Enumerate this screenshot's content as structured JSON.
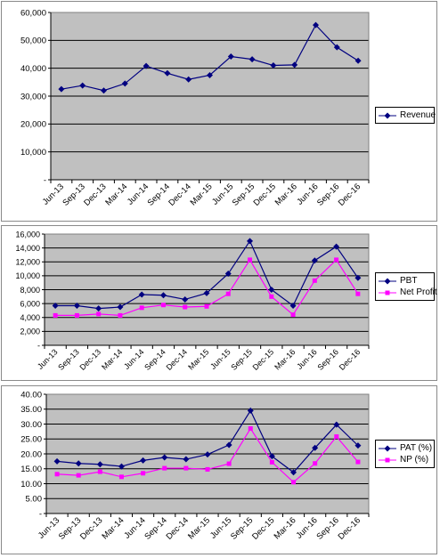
{
  "chart_data": [
    {
      "id": "revenue",
      "type": "line",
      "categories": [
        "Jun-13",
        "Sep-13",
        "Dec-13",
        "Mar-14",
        "Jun-14",
        "Sep-14",
        "Dec-14",
        "Mar-15",
        "Jun-15",
        "Sep-15",
        "Dec-15",
        "Mar-16",
        "Jun-16",
        "Sep-16",
        "Dec-16"
      ],
      "series": [
        {
          "name": "Revenue",
          "color": "#000080",
          "marker": "diamond",
          "values": [
            32500,
            33800,
            32000,
            34500,
            40800,
            38200,
            36000,
            37500,
            44200,
            43200,
            41000,
            41200,
            55500,
            47500,
            42700
          ]
        }
      ],
      "ylim": [
        0,
        60000
      ],
      "yticks": [
        0,
        10000,
        20000,
        30000,
        40000,
        50000,
        60000
      ],
      "ytick_labels": [
        "-",
        "10,000",
        "20,000",
        "30,000",
        "40,000",
        "50,000",
        "60,000"
      ],
      "grid": true,
      "plot_background": "#c0c0c0",
      "legend": "right"
    },
    {
      "id": "pbt",
      "type": "line",
      "categories": [
        "Jun-13",
        "Sep-13",
        "Dec-13",
        "Mar-14",
        "Jun-14",
        "Sep-14",
        "Dec-14",
        "Mar-15",
        "Jun-15",
        "Sep-15",
        "Dec-15",
        "Mar-16",
        "Jun-16",
        "Sep-16",
        "Dec-16"
      ],
      "series": [
        {
          "name": "PBT",
          "color": "#000080",
          "marker": "diamond",
          "values": [
            5700,
            5700,
            5300,
            5500,
            7300,
            7200,
            6600,
            7500,
            10300,
            15000,
            8000,
            5700,
            12200,
            14200,
            9700
          ]
        },
        {
          "name": "Net Profit",
          "color": "#ff00ff",
          "marker": "square",
          "values": [
            4300,
            4300,
            4500,
            4300,
            5400,
            5800,
            5500,
            5600,
            7400,
            12300,
            7000,
            4400,
            9300,
            12300,
            7400
          ]
        }
      ],
      "ylim": [
        0,
        16000
      ],
      "yticks": [
        0,
        2000,
        4000,
        6000,
        8000,
        10000,
        12000,
        14000,
        16000
      ],
      "ytick_labels": [
        "-",
        "2,000",
        "4,000",
        "6,000",
        "8,000",
        "10,000",
        "12,000",
        "14,000",
        "16,000"
      ],
      "grid": true,
      "plot_background": "#c0c0c0",
      "legend": "right"
    },
    {
      "id": "pat",
      "type": "line",
      "categories": [
        "Jun-13",
        "Sep-13",
        "Dec-13",
        "Mar-14",
        "Jun-14",
        "Sep-14",
        "Dec-14",
        "Mar-15",
        "Jun-15",
        "Sep-15",
        "Dec-15",
        "Mar-16",
        "Jun-16",
        "Sep-16",
        "Dec-16"
      ],
      "series": [
        {
          "name": "PAT (%)",
          "color": "#000080",
          "marker": "diamond",
          "values": [
            17.5,
            16.8,
            16.5,
            15.8,
            17.8,
            18.8,
            18.2,
            19.8,
            23.0,
            34.5,
            19.2,
            13.8,
            22.0,
            29.8,
            22.8
          ]
        },
        {
          "name": "NP (%)",
          "color": "#ff00ff",
          "marker": "square",
          "values": [
            13.2,
            12.8,
            14.0,
            12.3,
            13.5,
            15.2,
            15.2,
            14.8,
            16.7,
            28.5,
            17.2,
            10.5,
            16.8,
            25.8,
            17.3
          ]
        }
      ],
      "ylim": [
        0,
        40
      ],
      "yticks": [
        0,
        5,
        10,
        15,
        20,
        25,
        30,
        35,
        40
      ],
      "ytick_labels": [
        "-",
        "5.00",
        "10.00",
        "15.00",
        "20.00",
        "25.00",
        "30.00",
        "35.00",
        "40.00"
      ],
      "grid": true,
      "plot_background": "#c0c0c0",
      "legend": "right"
    }
  ]
}
